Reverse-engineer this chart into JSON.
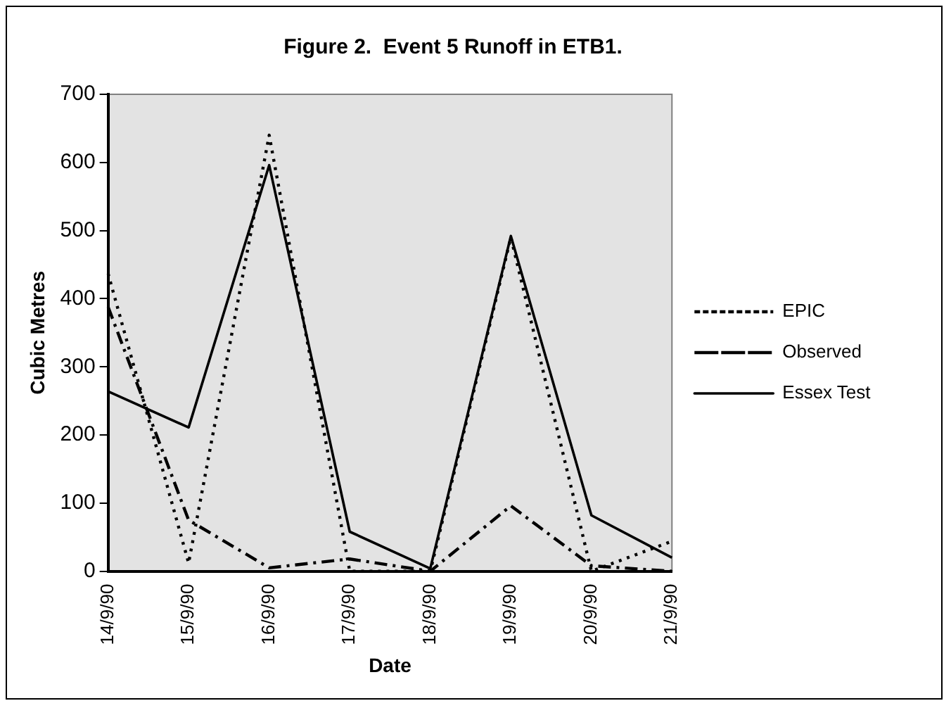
{
  "chart_data": {
    "type": "line",
    "title": "Figure 2.  Event 5 Runoff in ETB1.",
    "xlabel": "Date",
    "ylabel": "Cubic Metres",
    "categories": [
      "14/9/90",
      "15/9/90",
      "16/9/90",
      "17/9/90",
      "18/9/90",
      "19/9/90",
      "20/9/90",
      "21/9/90"
    ],
    "series": [
      {
        "name": "EPIC",
        "color": "#000000",
        "line_style": "dotted",
        "values": [
          437,
          12,
          640,
          0,
          0,
          490,
          0,
          44
        ]
      },
      {
        "name": "Observed",
        "color": "#000000",
        "line_style": "dashed",
        "values": [
          388,
          75,
          5,
          18,
          0,
          96,
          8,
          0
        ]
      },
      {
        "name": "Essex Test",
        "color": "#000000",
        "line_style": "solid",
        "values": [
          264,
          211,
          596,
          58,
          4,
          492,
          82,
          20
        ]
      }
    ],
    "ylim": [
      0,
      700
    ],
    "yticks": [
      0,
      100,
      200,
      300,
      400,
      500,
      600,
      700
    ],
    "grid": false,
    "legend": "right",
    "marker": "none"
  }
}
